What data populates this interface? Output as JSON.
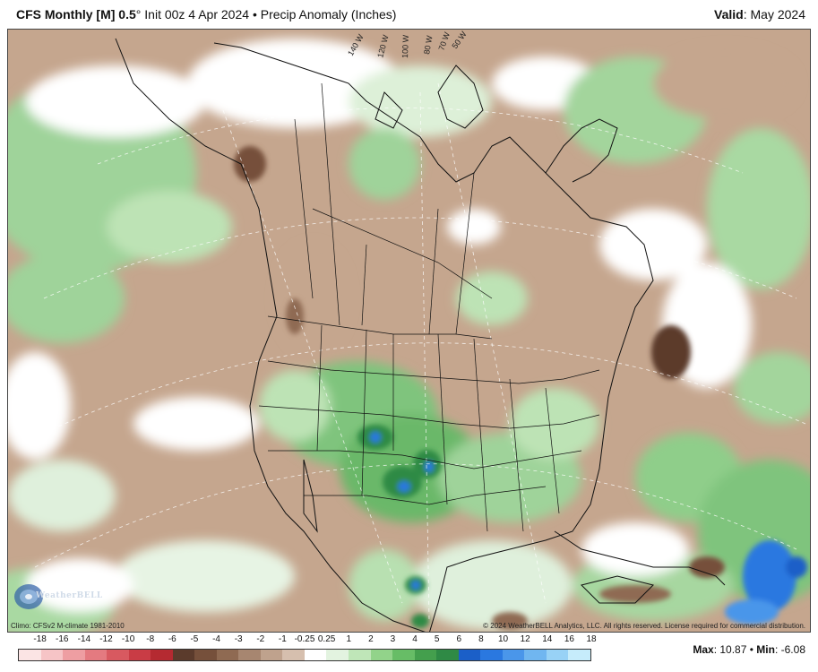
{
  "header": {
    "model_label": "CFS Monthly [M] 0.5",
    "degree_sign": "°",
    "init_text": "Init 00z 4 Apr 2024",
    "bullet": "•",
    "product": "Precip Anomaly (Inches)",
    "valid_label": "Valid",
    "valid_value": "May 2024"
  },
  "map": {
    "longitude_labels": [
      "140 W",
      "120 W",
      "100 W",
      "80 W",
      "70 W",
      "50 W"
    ],
    "logo_text": "WeatherBELL"
  },
  "footer": {
    "climo": "Climo: CFSv2 M-climate 1981-2010",
    "copyright": "© 2024 WeatherBELL Analytics, LLC. All rights reserved. License required for commercial distribution."
  },
  "colorbar": {
    "labels": [
      "-18",
      "-16",
      "-14",
      "-12",
      "-10",
      "-8",
      "-6",
      "-5",
      "-4",
      "-3",
      "-2",
      "-1",
      "-0.25",
      "0.25",
      "1",
      "2",
      "3",
      "4",
      "5",
      "6",
      "8",
      "10",
      "12",
      "14",
      "16",
      "18"
    ],
    "colors": [
      "#fbe4e4",
      "#f6c4c6",
      "#ee9ea2",
      "#e47a80",
      "#d85960",
      "#c93c45",
      "#b52a31",
      "#5b3b2c",
      "#76503b",
      "#8f6a52",
      "#a78670",
      "#bfa28d",
      "#d6bfae",
      "#ffffff",
      "#e3f3e0",
      "#bfe6b8",
      "#92d38a",
      "#67bd66",
      "#449f4d",
      "#2f8a45",
      "#1b5fc8",
      "#2a78e0",
      "#4a96ea",
      "#70b6f0",
      "#98d2f6",
      "#c6ecfb"
    ]
  },
  "stats": {
    "max_label": "Max",
    "max_value": "10.87",
    "min_label": "Min",
    "min_value": "-6.08"
  }
}
